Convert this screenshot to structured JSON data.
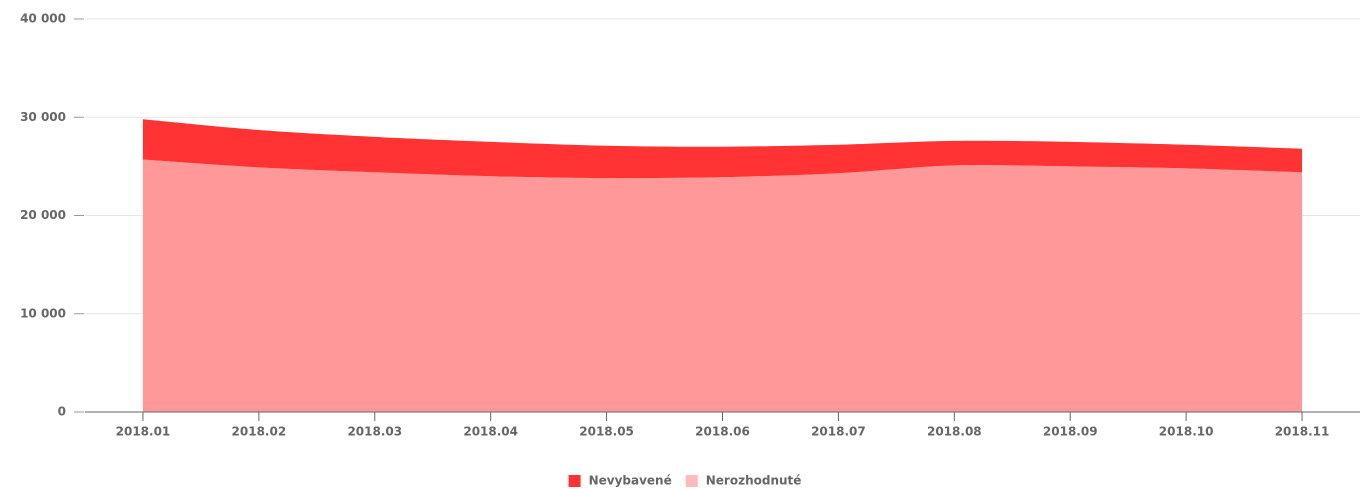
{
  "chart_data": {
    "type": "stacked_area",
    "categories": [
      "2018.01",
      "2018.02",
      "2018.03",
      "2018.04",
      "2018.05",
      "2018.06",
      "2018.07",
      "2018.08",
      "2018.09",
      "2018.10",
      "2018.11"
    ],
    "series": [
      {
        "name": "Nevybavené",
        "color": "#ff3333",
        "values": [
          4100,
          3800,
          3600,
          3500,
          3300,
          3100,
          2900,
          2500,
          2500,
          2400,
          2400
        ]
      },
      {
        "name": "Nerozhodnuté",
        "color": "#ff9999",
        "values": [
          25700,
          24900,
          24400,
          24000,
          23800,
          23900,
          24300,
          25100,
          25000,
          24800,
          24400
        ]
      }
    ],
    "ylim": [
      0,
      40000
    ],
    "yticks": [
      0,
      {
        "value": 10000,
        "label": "10 000"
      },
      {
        "value": 20000,
        "label": "20 000"
      },
      {
        "value": 30000,
        "label": "30 000"
      },
      {
        "value": 40000,
        "label": "40 000"
      }
    ],
    "grid": true,
    "legend": "bottom"
  }
}
